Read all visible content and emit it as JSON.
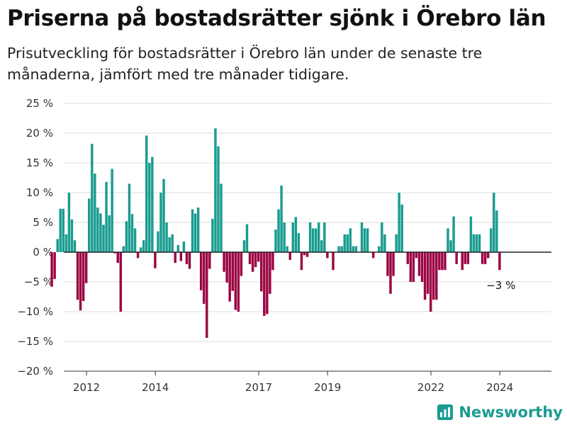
{
  "title": "Priserna på bostadsrätter sjönk i Örebro län",
  "subtitle": "Prisutveckling för bostadsrätter i Örebro län under de senaste tre månaderna, jämfört med tre månader tidigare.",
  "brand": {
    "name": "Newsworthy",
    "icon": "newsworthy-logo-icon"
  },
  "colors": {
    "positive": "#1a9c90",
    "negative": "#9b0543",
    "grid": "#dddddd",
    "axis": "#333333",
    "brand": "#1a9c90"
  },
  "chart_data": {
    "type": "bar",
    "start": "2011-01",
    "y_ticks": [
      "25 %",
      "20 %",
      "15 %",
      "10 %",
      "5 %",
      "0 %",
      "−5 %",
      "−10 %",
      "−15 %",
      "−20 %"
    ],
    "x_ticks": [
      "2012",
      "2014",
      "2017",
      "2019",
      "2022",
      "2024"
    ],
    "ylim": [
      -20,
      25
    ],
    "annotation": "−3 %",
    "values": [
      -5.8,
      -4.5,
      2.2,
      7.3,
      7.3,
      3.0,
      10.0,
      5.5,
      2.0,
      -8.0,
      -9.8,
      -8.2,
      -5.2,
      9.0,
      18.2,
      13.2,
      7.5,
      6.5,
      4.6,
      11.8,
      6.2,
      14.0,
      -0.2,
      -1.8,
      -10.0,
      1.0,
      5.2,
      11.5,
      6.4,
      4.0,
      -1.0,
      0.8,
      2.0,
      19.6,
      15.0,
      16.0,
      -2.7,
      3.5,
      10.0,
      12.3,
      5.0,
      2.5,
      3.0,
      -1.8,
      1.2,
      -1.5,
      1.8,
      -2.0,
      -2.8,
      7.2,
      6.5,
      7.5,
      -6.4,
      -8.7,
      -14.4,
      -2.8,
      5.6,
      20.8,
      17.8,
      11.5,
      -3.3,
      -5.1,
      -8.3,
      -6.5,
      -9.7,
      -10.0,
      -4.0,
      2.0,
      4.7,
      -2.0,
      -3.3,
      -2.5,
      -1.6,
      -6.6,
      -10.7,
      -10.4,
      -7.0,
      -3.0,
      3.8,
      7.2,
      11.2,
      5.0,
      1.0,
      -1.3,
      5.0,
      5.9,
      3.2,
      -3.0,
      -0.5,
      -0.8,
      5.0,
      4.0,
      4.0,
      5.0,
      2.0,
      5.0,
      -1.0,
      0.0,
      -3.0,
      0.0,
      1.0,
      1.0,
      3.0,
      3.0,
      4.0,
      1.0,
      1.0,
      0.0,
      5.0,
      4.0,
      4.0,
      0.0,
      -1.0,
      0.0,
      1.0,
      5.0,
      3.0,
      -4.0,
      -7.0,
      -4.0,
      3.0,
      10.0,
      8.0,
      0.0,
      -2.0,
      -5.0,
      -5.0,
      -1.0,
      -4.0,
      -5.0,
      -8.0,
      -7.0,
      -10.0,
      -8.0,
      -8.0,
      -3.0,
      -3.0,
      -3.0,
      4.0,
      2.0,
      6.0,
      -2.0,
      0.0,
      -3.0,
      -2.0,
      -2.0,
      6.0,
      3.0,
      3.0,
      3.0,
      -2.0,
      -2.0,
      -1.0,
      4.0,
      10.0,
      7.0,
      -3.0
    ]
  }
}
